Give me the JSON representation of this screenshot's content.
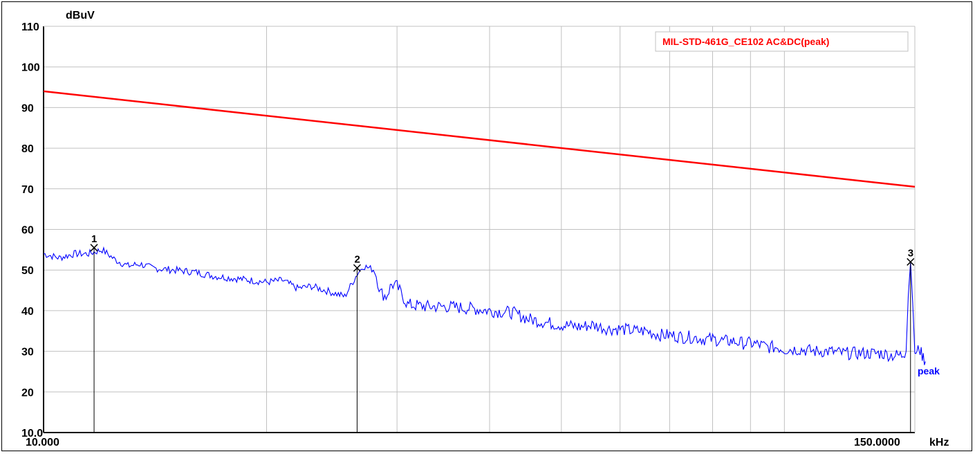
{
  "chart_data": {
    "type": "line",
    "ylabel": "dBuV",
    "xlabel": "kHz",
    "x_scale": "log",
    "xlim": [
      10,
      150
    ],
    "ylim": [
      10,
      110
    ],
    "grid": true,
    "x_tick_labels": [
      "10.000",
      "150.0000"
    ],
    "y_ticks": [
      110,
      100,
      90,
      80,
      70,
      60,
      50,
      40,
      30,
      20,
      10
    ],
    "y_tick_labels": [
      "110",
      "100",
      "90",
      "80",
      "70",
      "60",
      "50",
      "40",
      "30",
      "20",
      "10.0"
    ],
    "legend": {
      "text": "MIL-STD-461G_CE102 AC&DC(peak)",
      "placement": "top-right",
      "color": "#ff0000"
    },
    "series": [
      {
        "name": "MIL-STD-461G_CE102 AC&DC(peak)",
        "color": "#ff0000",
        "x": [
          10,
          150
        ],
        "values": [
          94,
          70.5
        ]
      },
      {
        "name": "peak",
        "color": "#0000ff",
        "x": [
          10,
          10.5,
          11,
          11.5,
          12,
          12.5,
          13,
          13.5,
          14,
          15,
          16,
          17,
          18,
          19,
          20,
          21,
          22,
          23,
          24,
          25,
          25.5,
          26.5,
          27,
          28,
          28.5,
          29,
          29.5,
          30,
          31,
          33,
          35,
          38,
          40,
          43,
          45,
          48,
          50,
          53,
          55,
          58,
          60,
          63,
          65,
          68,
          70,
          73,
          75,
          78,
          80,
          83,
          85,
          88,
          90,
          93,
          95,
          98,
          100,
          105,
          110,
          115,
          120,
          125,
          130,
          135,
          140,
          144,
          146,
          147,
          148,
          149,
          150,
          151,
          152,
          153,
          154,
          155
        ],
        "values": [
          54,
          53,
          54,
          54,
          55,
          52.5,
          51,
          51.5,
          50.5,
          50,
          49.5,
          48.5,
          48,
          47.5,
          47,
          47.5,
          45.5,
          46,
          45,
          44,
          43.5,
          49,
          51,
          50,
          44.5,
          43.5,
          46.5,
          46,
          41.5,
          41,
          41,
          40.5,
          40,
          39.5,
          38,
          37,
          36.5,
          36,
          36.5,
          35.5,
          35.5,
          35,
          35,
          34,
          34,
          33.5,
          33.5,
          33,
          33,
          32.5,
          32.5,
          32,
          32,
          31.5,
          31,
          31,
          30.5,
          30.5,
          30,
          30,
          29.5,
          29.5,
          29.5,
          29.5,
          29,
          29,
          30,
          44,
          52,
          42,
          30,
          29.5,
          31,
          29.5,
          28.5,
          27.5
        ]
      }
    ],
    "markers": [
      {
        "label": "1",
        "x": 11.7,
        "y": 55.5
      },
      {
        "label": "2",
        "x": 26.5,
        "y": 50.5
      },
      {
        "label": "3",
        "x": 148,
        "y": 52.0
      }
    ],
    "trace_label": "peak"
  }
}
